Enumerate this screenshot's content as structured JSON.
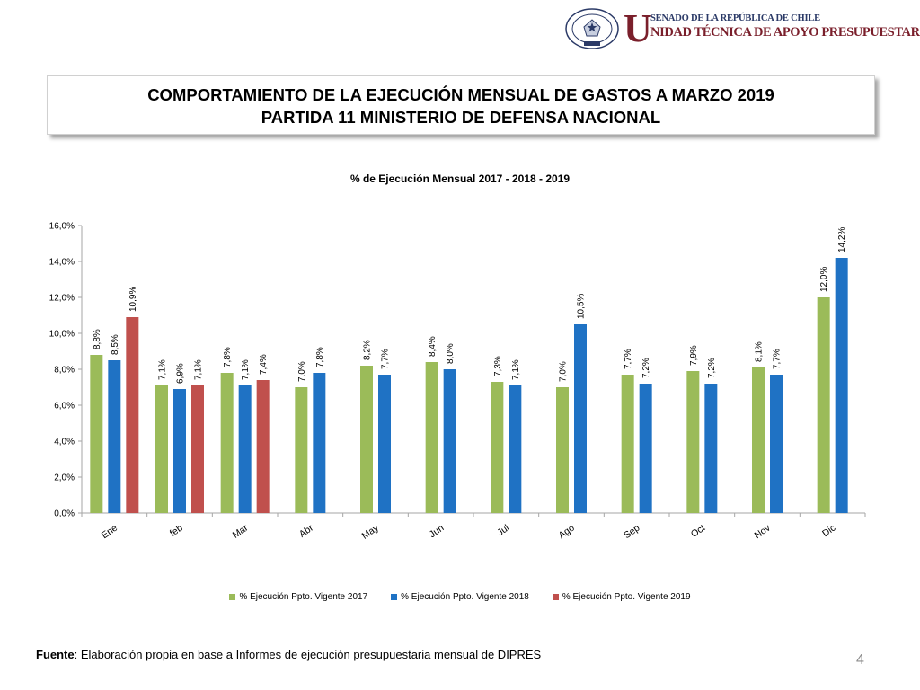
{
  "header": {
    "org_top": "SENADO DE LA REPÚBLICA DE CHILE",
    "org_initial": "U",
    "org_bottom": "NIDAD TÉCNICA DE APOYO PRESUPUESTARIO"
  },
  "title": {
    "line1": "COMPORTAMIENTO DE LA EJECUCIÓN MENSUAL DE GASTOS A MARZO 2019",
    "line2": "PARTIDA 11 MINISTERIO DE DEFENSA NACIONAL"
  },
  "chart_data": {
    "type": "bar",
    "title": "% de Ejecución Mensual 2017 - 2018 - 2019",
    "categories": [
      "Ene",
      "feb",
      "Mar",
      "Abr",
      "May",
      "Jun",
      "Jul",
      "Ago",
      "Sep",
      "Oct",
      "Nov",
      "Dic"
    ],
    "series": [
      {
        "name": "% Ejecución Ppto. Vigente 2017",
        "color": "#9bbb59",
        "values": [
          8.8,
          7.1,
          7.8,
          7.0,
          8.2,
          8.4,
          7.3,
          7.0,
          7.7,
          7.9,
          8.1,
          12.0
        ],
        "labels": [
          "8,8%",
          "7,1%",
          "7,8%",
          "7,0%",
          "8,2%",
          "8,4%",
          "7,3%",
          "7,0%",
          "7,7%",
          "7,9%",
          "8,1%",
          "12,0%"
        ]
      },
      {
        "name": "% Ejecución Ppto. Vigente 2018",
        "color": "#1f72c4",
        "values": [
          8.5,
          6.9,
          7.1,
          7.8,
          7.7,
          8.0,
          7.1,
          10.5,
          7.2,
          7.2,
          7.7,
          14.2
        ],
        "labels": [
          "8,5%",
          "6,9%",
          "7,1%",
          "7,8%",
          "7,7%",
          "8,0%",
          "7,1%",
          "10,5%",
          "7,2%",
          "7,2%",
          "7,7%",
          "14,2%"
        ]
      },
      {
        "name": "% Ejecución Ppto. Vigente 2019",
        "color": "#c0504d",
        "values": [
          10.9,
          7.1,
          7.4,
          null,
          null,
          null,
          null,
          null,
          null,
          null,
          null,
          null
        ],
        "labels": [
          "10,9%",
          "7,1%",
          "7,4%",
          "",
          "",
          "",
          "",
          "",
          "",
          "",
          "",
          ""
        ]
      }
    ],
    "y_ticks": [
      0,
      2,
      4,
      6,
      8,
      10,
      12,
      14,
      16
    ],
    "y_tick_labels": [
      "0,0%",
      "2,0%",
      "4,0%",
      "6,0%",
      "8,0%",
      "10,0%",
      "12,0%",
      "14,0%",
      "16,0%"
    ],
    "ylim": [
      0,
      16
    ],
    "grid": false,
    "legend_position": "bottom"
  },
  "footer": {
    "source_label": "Fuente",
    "source_text": ": Elaboración propia en base  a Informes de ejecución presupuestaria mensual de DIPRES",
    "page_number": "4"
  }
}
